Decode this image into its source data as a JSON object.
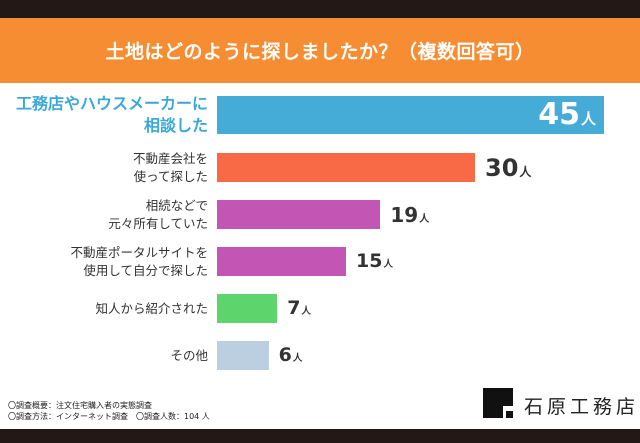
{
  "chart_data": {
    "type": "bar",
    "orientation": "horizontal",
    "title": "土地はどのように探しましたか？（複数回答可）",
    "categories": [
      "工務店やハウスメーカーに\n相談した",
      "不動産会社を\n使って探した",
      "相続などで\n元々所有していた",
      "不動産ポータルサイトを\n使用して自分で探した",
      "知人から紹介された",
      "その他"
    ],
    "values": [
      45,
      30,
      19,
      15,
      7,
      6
    ],
    "unit": "人",
    "colors": [
      "#45acd8",
      "#f76a45",
      "#c355b5",
      "#c355b5",
      "#5dd46c",
      "#bccfe0"
    ],
    "highlight_index": 0,
    "grid": false
  },
  "footer": {
    "line1": "〇調査概要：注文住宅購入者の実態調査",
    "line2": "〇調査方法：インターネット調査　〇調査人数：104 人"
  },
  "brand": {
    "name": "石原工務店"
  }
}
